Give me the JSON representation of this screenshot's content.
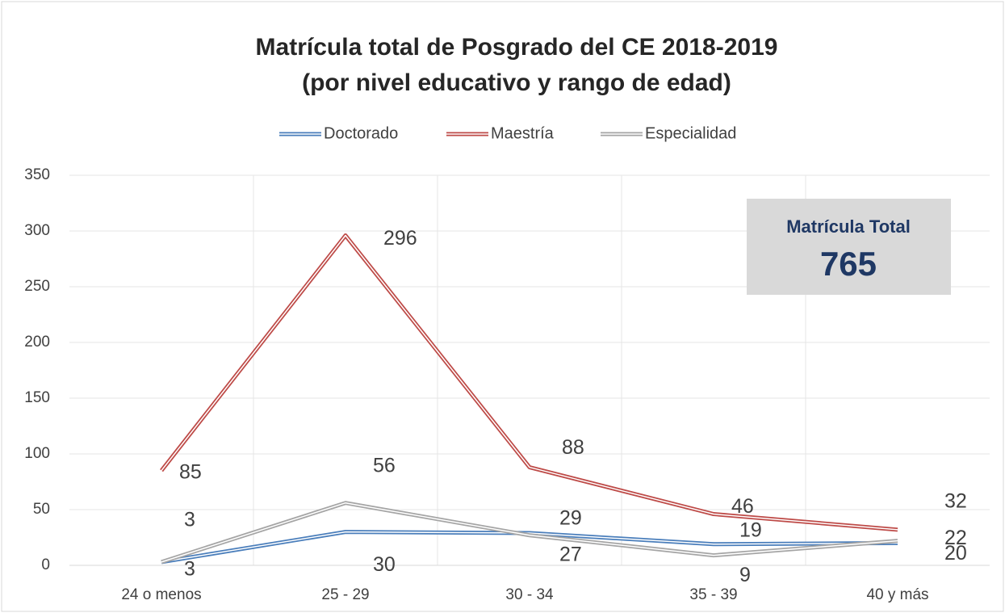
{
  "chart_data": {
    "type": "line",
    "title": [
      "Matrícula total de Posgrado del CE 2018-2019",
      "(por nivel educativo y rango de edad)"
    ],
    "categories": [
      "24 o menos",
      "25 - 29",
      "30 - 34",
      "35 - 39",
      "40 y más"
    ],
    "series": [
      {
        "name": "Doctorado",
        "color": "#4a7ebb",
        "values": [
          3,
          30,
          29,
          19,
          20
        ]
      },
      {
        "name": "Maestría",
        "color": "#be4b48",
        "values": [
          85,
          296,
          88,
          46,
          32
        ]
      },
      {
        "name": "Especialidad",
        "color": "#a5a5a5",
        "values": [
          3,
          56,
          27,
          9,
          22
        ]
      }
    ],
    "ylim": [
      0,
      350
    ],
    "yticks": [
      0,
      50,
      100,
      150,
      200,
      250,
      300,
      350
    ],
    "grid": true,
    "legend": "top",
    "annotation": {
      "label": "Matrícula Total",
      "value": 765
    }
  }
}
